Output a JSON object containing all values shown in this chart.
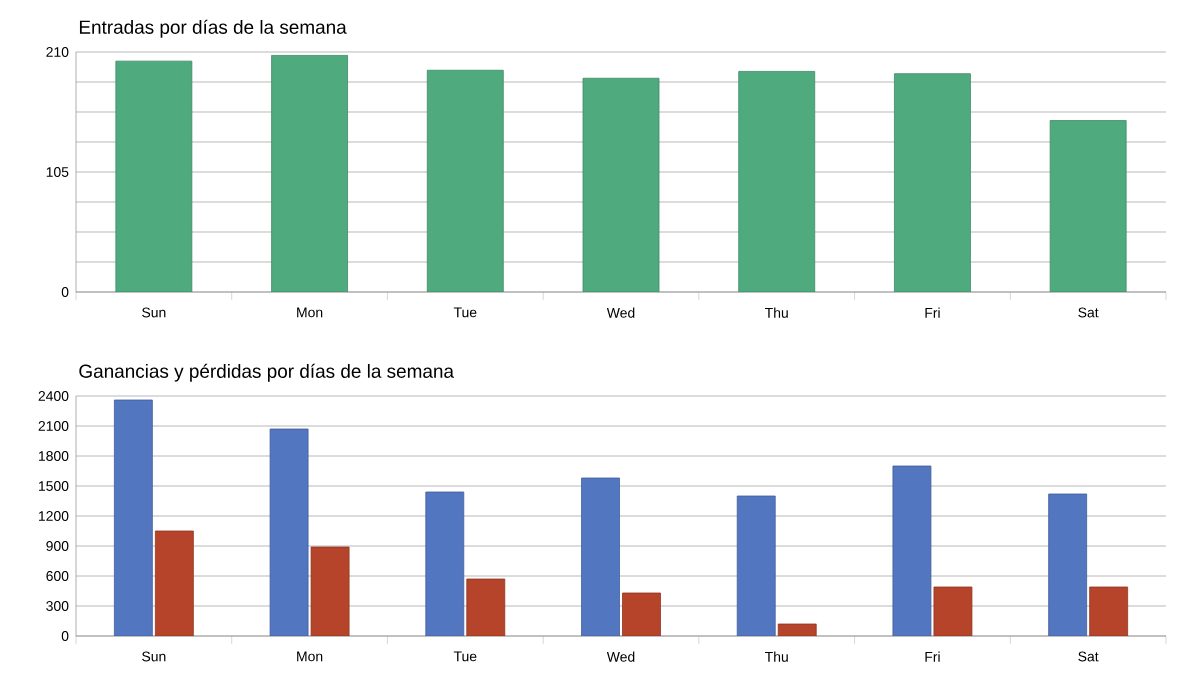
{
  "chart_data": [
    {
      "type": "bar",
      "title": "Entradas por días de la semana",
      "categories": [
        "Sun",
        "Mon",
        "Tue",
        "Wed",
        "Thu",
        "Fri",
        "Sat"
      ],
      "values": [
        202,
        207,
        194,
        187,
        193,
        191,
        150
      ],
      "color": "#4fab7d",
      "ylim": [
        0,
        210
      ],
      "yticks": [
        0,
        {
          "value": 26.25,
          "label": null
        },
        {
          "value": 52.5,
          "label": null
        },
        {
          "value": 78.75,
          "label": null
        },
        105,
        {
          "value": 131.25,
          "label": null
        },
        {
          "value": 157.5,
          "label": null
        },
        {
          "value": 183.75,
          "label": null
        },
        210
      ],
      "grid": "y"
    },
    {
      "type": "bar",
      "title": "Ganancias y pérdidas por días de la semana",
      "categories": [
        "Sun",
        "Mon",
        "Tue",
        "Wed",
        "Thu",
        "Fri",
        "Sat"
      ],
      "series": [
        {
          "color": "#5276c0",
          "values": [
            2360,
            2070,
            1440,
            1580,
            1400,
            1700,
            1420
          ]
        },
        {
          "color": "#b5442a",
          "values": [
            1050,
            890,
            570,
            430,
            120,
            490,
            490
          ]
        }
      ],
      "ylim": [
        0,
        2400
      ],
      "yticks": [
        0,
        300,
        600,
        900,
        1200,
        1500,
        1800,
        2100,
        2400
      ],
      "grid": "y"
    }
  ]
}
